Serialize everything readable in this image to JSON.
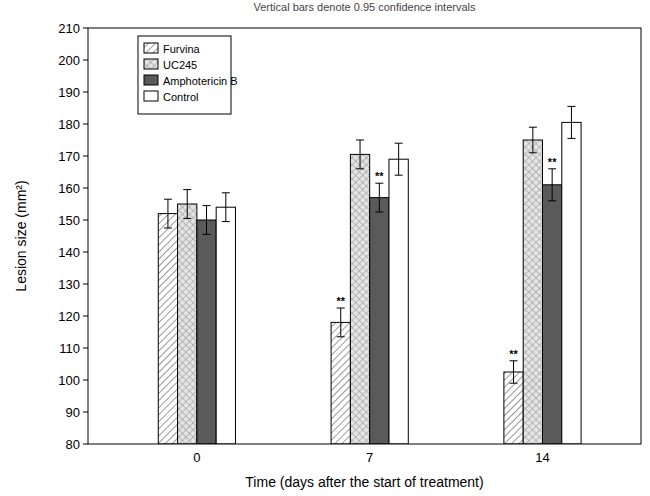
{
  "chart_data": {
    "type": "bar",
    "title": "Vertical bars denote 0.95 confidence intervals",
    "x_label": "Time (days after the start of treatment)",
    "y_label": "Lesion size (mm²)",
    "categories": [
      "0",
      "7",
      "14"
    ],
    "series": [
      {
        "name": "Furvina",
        "color": "#7f7f7f",
        "values": [
          152,
          118,
          102.5
        ],
        "errors": [
          4.5,
          4.5,
          3.5
        ]
      },
      {
        "name": "UC245",
        "color": "#9a9a9a",
        "values": [
          155,
          170.5,
          175
        ],
        "errors": [
          4.5,
          4.5,
          4
        ]
      },
      {
        "name": "Amphotericin B",
        "color": "#5a5a5a",
        "values": [
          150,
          157,
          161
        ],
        "errors": [
          4.5,
          4.5,
          5
        ]
      },
      {
        "name": "Control",
        "color": "#ffffff",
        "values": [
          154,
          169,
          180.5
        ],
        "errors": [
          4.5,
          5,
          5
        ]
      }
    ],
    "annotations": [
      {
        "text": "**",
        "series": 0,
        "category": 1
      },
      {
        "text": "**",
        "series": 2,
        "category": 1
      },
      {
        "text": "**",
        "series": 0,
        "category": 2
      },
      {
        "text": "**",
        "series": 2,
        "category": 2
      }
    ],
    "ylim": [
      80,
      210
    ],
    "yticks": [
      80,
      90,
      100,
      110,
      120,
      130,
      140,
      150,
      160,
      170,
      180,
      190,
      200,
      210
    ],
    "grid": false,
    "legend": "upper left"
  }
}
